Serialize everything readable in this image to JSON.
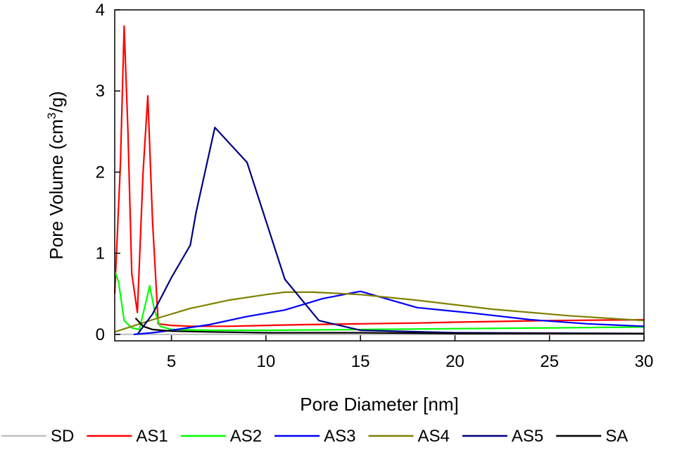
{
  "chart_data": {
    "type": "line",
    "xlabel": "Pore Diameter [nm]",
    "ylabel_main": "Pore Volume (cm",
    "ylabel_sup": "3",
    "ylabel_tail": "/g)",
    "xlim": [
      2,
      30
    ],
    "ylim": [
      -0.08,
      4
    ],
    "xticks": [
      5,
      10,
      15,
      20,
      25,
      30
    ],
    "yticks": [
      0,
      1,
      2,
      3,
      4
    ],
    "grid": false,
    "legend_position": "bottom",
    "series": [
      {
        "name": "SD",
        "color": "#c0c0c0",
        "x": [
          2,
          5,
          10,
          15,
          20,
          25,
          30
        ],
        "y": [
          0.0,
          0.0,
          0.0,
          0.0,
          0.0,
          0.0,
          0.0
        ]
      },
      {
        "name": "AS1",
        "color": "#ff0000",
        "x": [
          2.0,
          2.3,
          2.5,
          2.7,
          2.9,
          3.2,
          3.5,
          3.75,
          4.0,
          4.3,
          5.0,
          6.0,
          8.0,
          10.0,
          12.0,
          15.0,
          18.0,
          20.0,
          25.0,
          30.0
        ],
        "y": [
          0.5,
          2.1,
          3.8,
          2.5,
          0.75,
          0.27,
          2.0,
          2.94,
          1.4,
          0.13,
          0.11,
          0.1,
          0.1,
          0.11,
          0.12,
          0.13,
          0.14,
          0.15,
          0.17,
          0.18
        ]
      },
      {
        "name": "AS2",
        "color": "#00ff00",
        "x": [
          2.0,
          2.2,
          2.5,
          2.9,
          3.3,
          3.6,
          3.85,
          4.1,
          4.4,
          5.0,
          7.0,
          10.0,
          15.0,
          20.0,
          25.0,
          30.0
        ],
        "y": [
          0.78,
          0.65,
          0.17,
          0.08,
          0.06,
          0.35,
          0.6,
          0.3,
          0.1,
          0.06,
          0.05,
          0.05,
          0.06,
          0.07,
          0.08,
          0.09
        ]
      },
      {
        "name": "AS3",
        "color": "#0000ff",
        "x": [
          3.0,
          4.0,
          5.0,
          7.0,
          9.0,
          11.0,
          13.0,
          15.0,
          18.0,
          21.0,
          24.0,
          27.0,
          30.0
        ],
        "y": [
          0.0,
          0.02,
          0.05,
          0.12,
          0.22,
          0.3,
          0.44,
          0.53,
          0.33,
          0.26,
          0.18,
          0.13,
          0.1
        ]
      },
      {
        "name": "AS4",
        "color": "#808000",
        "x": [
          2.0,
          4.0,
          6.0,
          8.0,
          10.0,
          11.0,
          12.5,
          15.0,
          18.0,
          22.0,
          26.0,
          30.0
        ],
        "y": [
          0.03,
          0.18,
          0.32,
          0.42,
          0.49,
          0.52,
          0.52,
          0.49,
          0.42,
          0.31,
          0.23,
          0.17
        ]
      },
      {
        "name": "AS5",
        "color": "#000080",
        "x": [
          3.2,
          4.0,
          5.0,
          6.0,
          6.3,
          7.3,
          9.0,
          11.0,
          12.8,
          15.0,
          20.0,
          30.0
        ],
        "y": [
          0.0,
          0.25,
          0.7,
          1.1,
          1.5,
          2.55,
          2.12,
          0.68,
          0.17,
          0.05,
          0.02,
          0.01
        ]
      },
      {
        "name": "SA",
        "color": "#000000",
        "x": [
          3.1,
          3.5,
          4.0,
          5.0,
          7.0,
          10.0,
          15.0,
          20.0,
          30.0
        ],
        "y": [
          0.2,
          0.1,
          0.06,
          0.04,
          0.03,
          0.02,
          0.02,
          0.01,
          0.01
        ]
      }
    ]
  }
}
